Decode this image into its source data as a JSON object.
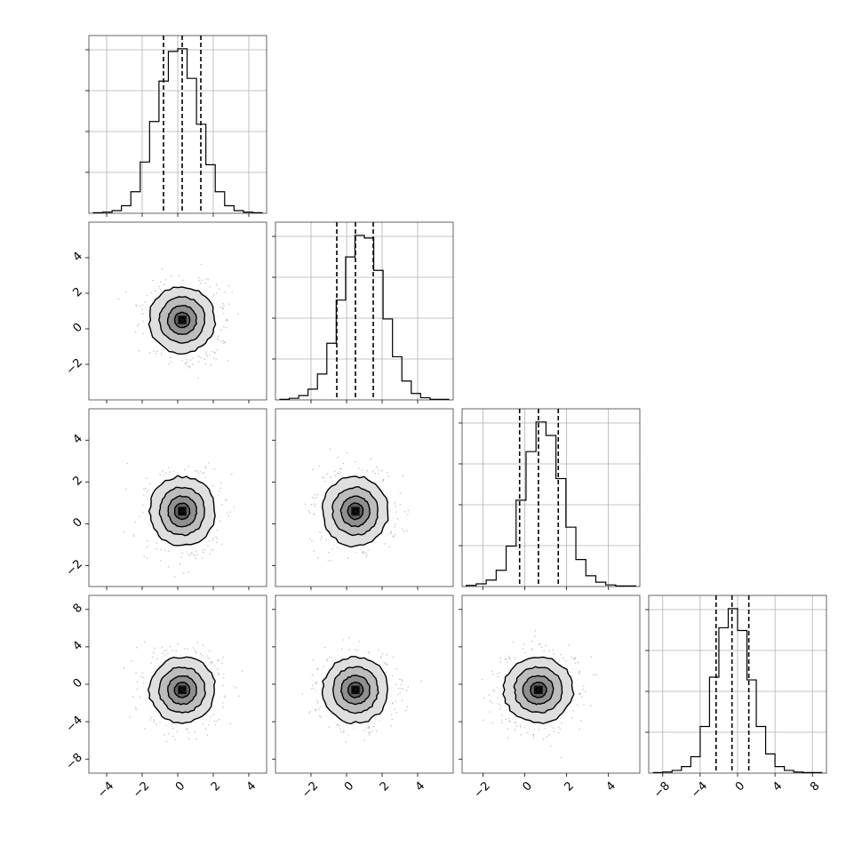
{
  "chart_data": {
    "type": "corner",
    "description_free": true,
    "variables": [
      {
        "range": [
          -5,
          5
        ],
        "ticks": [
          -4,
          -2,
          0,
          2,
          4
        ],
        "quantiles": [
          -0.8,
          0.25,
          1.3
        ],
        "hist_bins": [
          -4.75,
          4.75
        ],
        "hist_counts": [
          1,
          2,
          5,
          14,
          40,
          95,
          170,
          245,
          300,
          305,
          250,
          165,
          90,
          40,
          14,
          5,
          2,
          1
        ]
      },
      {
        "range": [
          -4,
          6
        ],
        "ticks": [
          -2,
          0,
          2,
          4
        ],
        "quantiles": [
          -0.55,
          0.5,
          1.5
        ],
        "hist_bins": [
          -3.75,
          5.75
        ],
        "hist_counts": [
          1,
          3,
          8,
          20,
          48,
          105,
          185,
          265,
          305,
          300,
          240,
          150,
          80,
          35,
          12,
          4,
          1,
          1
        ]
      },
      {
        "range": [
          -3,
          5.5
        ],
        "ticks": [
          -2,
          0,
          2,
          4
        ],
        "quantiles": [
          -0.25,
          0.65,
          1.6
        ],
        "hist_bins": [
          -2.8,
          5.3
        ],
        "hist_counts": [
          2,
          5,
          12,
          30,
          75,
          160,
          250,
          305,
          280,
          200,
          110,
          50,
          20,
          8,
          3,
          1,
          1
        ]
      },
      {
        "range": [
          -9.5,
          9.5
        ],
        "ticks": [
          -8,
          -4,
          0,
          4,
          8
        ],
        "quantiles": [
          -2.3,
          -0.6,
          1.2
        ],
        "hist_bins": [
          -9,
          9
        ],
        "hist_counts": [
          1,
          2,
          5,
          12,
          30,
          85,
          175,
          265,
          300,
          260,
          170,
          85,
          35,
          12,
          5,
          2,
          1,
          1
        ]
      }
    ],
    "pairs": [
      {
        "row": 1,
        "col": 0,
        "center": [
          0.25,
          0.5
        ],
        "spread": [
          0.95,
          0.95
        ]
      },
      {
        "row": 2,
        "col": 0,
        "center": [
          0.25,
          0.6
        ],
        "spread": [
          0.95,
          0.85
        ]
      },
      {
        "row": 2,
        "col": 1,
        "center": [
          0.5,
          0.6
        ],
        "spread": [
          0.95,
          0.85
        ]
      },
      {
        "row": 3,
        "col": 0,
        "center": [
          0.25,
          -0.6
        ],
        "spread": [
          0.95,
          1.8
        ]
      },
      {
        "row": 3,
        "col": 1,
        "center": [
          0.5,
          -0.6
        ],
        "spread": [
          0.95,
          1.8
        ]
      },
      {
        "row": 3,
        "col": 2,
        "center": [
          0.65,
          -0.6
        ],
        "spread": [
          0.85,
          1.8
        ]
      }
    ],
    "contour_levels": [
      0.15,
      0.45,
      0.85,
      1.35,
      1.95
    ],
    "grid": true,
    "title": "",
    "xlabel": "",
    "ylabel": ""
  }
}
